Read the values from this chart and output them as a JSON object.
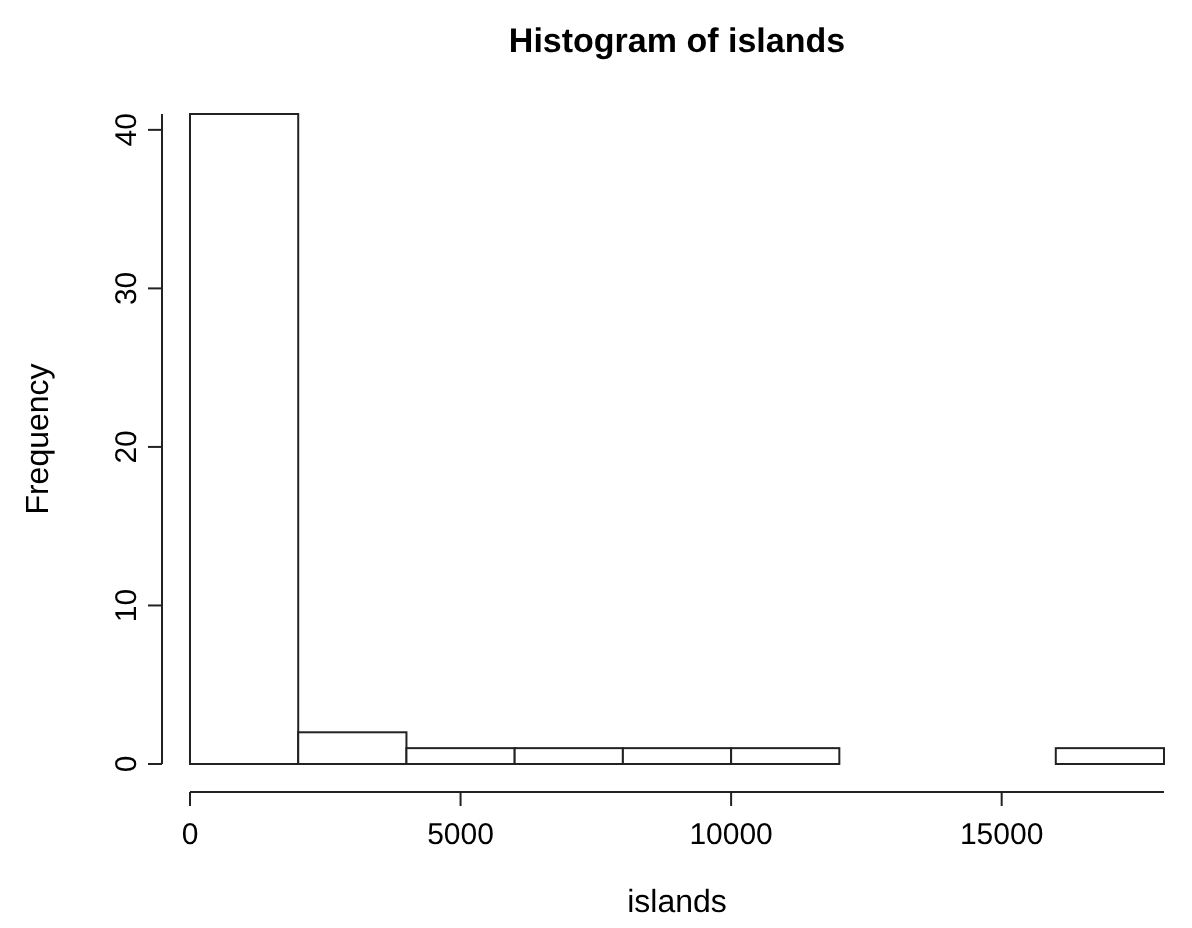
{
  "chart_data": {
    "type": "histogram",
    "title": "Histogram of islands",
    "xlabel": "islands",
    "ylabel": "Frequency",
    "bins": [
      0,
      2000,
      4000,
      6000,
      8000,
      10000,
      12000,
      14000,
      16000,
      18000
    ],
    "values": [
      41,
      2,
      1,
      1,
      1,
      1,
      0,
      0,
      1
    ],
    "color": "#ffffff",
    "xlim": [
      0,
      18000
    ],
    "xticks": [
      0,
      5000,
      10000,
      15000
    ],
    "ylim": [
      0,
      41
    ],
    "yticks": [
      0,
      10,
      20,
      30,
      40
    ],
    "grid": false
  }
}
